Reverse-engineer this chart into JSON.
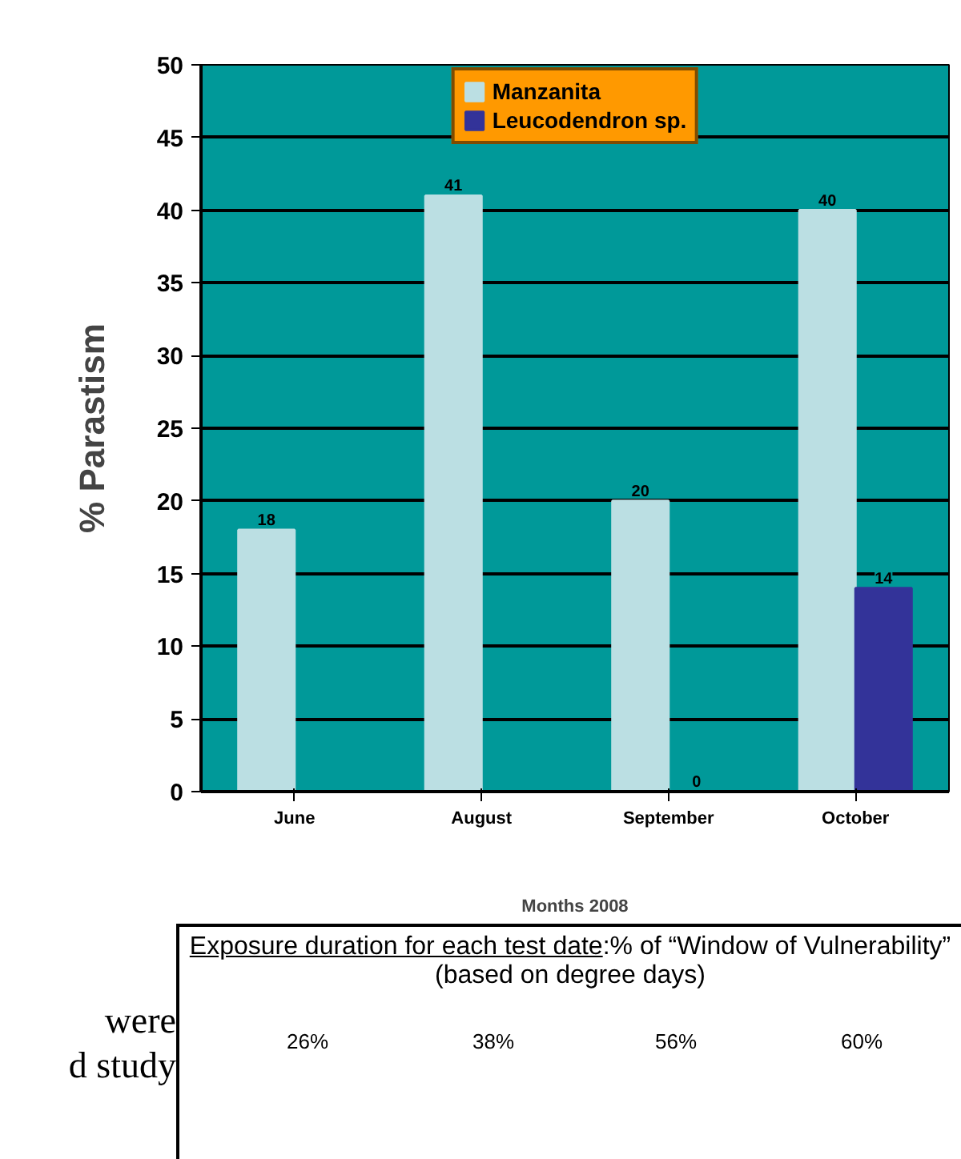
{
  "chart_data": {
    "type": "bar",
    "xlabel": "Months 2008",
    "ylabel": "% Parastism",
    "categories": [
      "June",
      "August",
      "September",
      "October"
    ],
    "series": [
      {
        "name": "Manzanita",
        "color": "#bbdfe3",
        "values": [
          18,
          41,
          20,
          40
        ]
      },
      {
        "name": "Leucodendron sp.",
        "color": "#333399",
        "values": [
          null,
          null,
          0,
          14
        ]
      }
    ],
    "ylim": [
      0,
      50
    ],
    "yticks": [
      0,
      5,
      10,
      15,
      20,
      25,
      30,
      35,
      40,
      45,
      50
    ],
    "grid": "y",
    "legend": "top",
    "data_labels": true,
    "annotations": [
      "Exposure duration for each test date:% of “Window of Vulnerability” (based on degree days)",
      "26%",
      "38%",
      "56%",
      "60%",
      "were",
      "d study"
    ]
  }
}
